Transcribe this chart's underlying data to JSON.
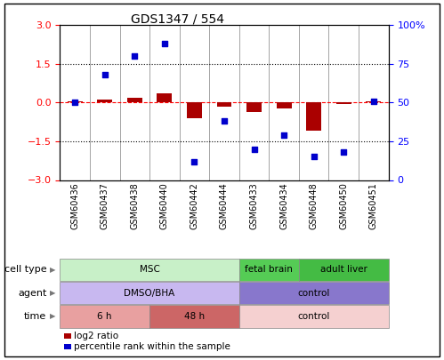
{
  "title": "GDS1347 / 554",
  "samples": [
    "GSM60436",
    "GSM60437",
    "GSM60438",
    "GSM60440",
    "GSM60442",
    "GSM60444",
    "GSM60433",
    "GSM60434",
    "GSM60448",
    "GSM60450",
    "GSM60451"
  ],
  "log2_ratio": [
    0.05,
    0.12,
    0.18,
    0.35,
    -0.6,
    -0.15,
    -0.35,
    -0.22,
    -1.1,
    -0.05,
    0.05
  ],
  "percentile_rank": [
    50,
    68,
    80,
    88,
    12,
    38,
    20,
    29,
    15,
    18,
    51
  ],
  "bar_color": "#aa0000",
  "dot_color": "#0000cc",
  "ylim_left": [
    -3,
    3
  ],
  "ylim_right": [
    0,
    100
  ],
  "yticks_left": [
    -3,
    -1.5,
    0,
    1.5,
    3
  ],
  "yticks_right": [
    0,
    25,
    50,
    75,
    100
  ],
  "ytick_labels_right": [
    "0",
    "25",
    "50",
    "75",
    "100%"
  ],
  "dotted_lines": [
    -1.5,
    1.5
  ],
  "cell_type_groups": [
    {
      "label": "MSC",
      "start": 0,
      "end": 5,
      "color": "#c8f0c8"
    },
    {
      "label": "fetal brain",
      "start": 6,
      "end": 7,
      "color": "#55cc55"
    },
    {
      "label": "adult liver",
      "start": 8,
      "end": 10,
      "color": "#44bb44"
    }
  ],
  "agent_groups": [
    {
      "label": "DMSO/BHA",
      "start": 0,
      "end": 5,
      "color": "#c8b8f0"
    },
    {
      "label": "control",
      "start": 6,
      "end": 10,
      "color": "#8877cc"
    }
  ],
  "time_groups": [
    {
      "label": "6 h",
      "start": 0,
      "end": 2,
      "color": "#e8a0a0"
    },
    {
      "label": "48 h",
      "start": 3,
      "end": 5,
      "color": "#cc6666"
    },
    {
      "label": "control",
      "start": 6,
      "end": 10,
      "color": "#f5d0d0"
    }
  ],
  "row_labels": [
    "cell type",
    "agent",
    "time"
  ],
  "legend_items": [
    {
      "color": "#aa0000",
      "label": "log2 ratio"
    },
    {
      "color": "#0000cc",
      "label": "percentile rank within the sample"
    }
  ],
  "bar_width": 0.5
}
